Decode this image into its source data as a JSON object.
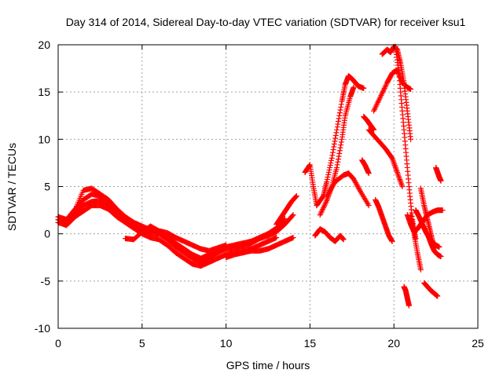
{
  "chart_data": {
    "type": "scatter",
    "title": "Day 314 of 2014, Sidereal Day-to-day VTEC variation (SDTVAR) for receiver ksu1",
    "xlabel": "GPS time / hours",
    "ylabel": "SDTVAR / TECUs",
    "xlim": [
      0,
      25
    ],
    "ylim": [
      -10,
      20
    ],
    "xticks": [
      0,
      5,
      10,
      15,
      20,
      25
    ],
    "yticks": [
      -10,
      -5,
      0,
      5,
      10,
      15,
      20
    ],
    "xtick_labels": [
      "0",
      "5",
      "10",
      "15",
      "20",
      "25"
    ],
    "ytick_labels": [
      "-10",
      "-5",
      "0",
      "5",
      "10",
      "15",
      "20"
    ],
    "grid": true,
    "marker": "+",
    "color": "#ff0000",
    "series": [
      {
        "name": "track-1",
        "x": [
          0.0,
          0.5,
          1.0,
          1.5,
          2.0,
          2.5,
          3.0,
          3.5,
          4.0,
          4.5,
          5.0,
          5.5,
          6.0,
          6.5,
          7.0,
          7.5,
          8.0,
          8.5,
          9.0,
          9.5,
          10.0,
          10.5,
          11.0,
          11.5,
          12.0,
          12.5,
          13.0,
          13.5,
          14.0
        ],
        "y": [
          1.5,
          1.2,
          2.0,
          3.0,
          3.4,
          3.5,
          3.0,
          2.2,
          1.5,
          1.0,
          0.5,
          0.0,
          0.0,
          -0.6,
          -1.4,
          -2.0,
          -2.6,
          -3.0,
          -2.6,
          -2.0,
          -1.6,
          -1.5,
          -1.3,
          -1.0,
          -0.5,
          -0.2,
          0.2,
          1.0,
          2.0
        ]
      },
      {
        "name": "track-2",
        "x": [
          0.0,
          0.5,
          1.0,
          1.5,
          2.0,
          2.5,
          3.0,
          3.5,
          4.0,
          4.5,
          5.0,
          5.5,
          6.0,
          6.5,
          7.0,
          7.5,
          8.0,
          8.5,
          9.0,
          9.5,
          10.0,
          10.5,
          11.0,
          11.5,
          12.0,
          12.5,
          13.0,
          13.5
        ],
        "y": [
          1.8,
          1.5,
          2.6,
          3.6,
          4.2,
          4.0,
          3.5,
          2.6,
          1.8,
          1.2,
          0.8,
          0.4,
          0.2,
          -0.2,
          -1.0,
          -1.6,
          -2.2,
          -2.6,
          -2.2,
          -1.8,
          -1.4,
          -1.2,
          -1.0,
          -0.8,
          -0.4,
          0.0,
          0.6,
          1.6
        ]
      },
      {
        "name": "track-3",
        "x": [
          0.0,
          0.5,
          1.0,
          1.5,
          2.0,
          2.5,
          3.0,
          3.5,
          4.0,
          4.5,
          5.0,
          5.5,
          6.0,
          6.5,
          7.0,
          7.5,
          8.0,
          8.5,
          9.0,
          9.5,
          10.0,
          10.5,
          11.0,
          11.5,
          12.0,
          12.5,
          13.0
        ],
        "y": [
          1.2,
          0.9,
          1.8,
          2.4,
          3.0,
          3.0,
          2.6,
          1.8,
          1.2,
          0.6,
          0.0,
          -0.4,
          -0.6,
          -1.2,
          -2.0,
          -2.6,
          -3.2,
          -3.4,
          -3.0,
          -2.6,
          -2.2,
          -2.0,
          -1.8,
          -1.6,
          -1.2,
          -0.8,
          -0.4
        ]
      },
      {
        "name": "track-4",
        "x": [
          1.0,
          1.5,
          2.0,
          2.5,
          3.0,
          3.5,
          4.0
        ],
        "y": [
          2.5,
          4.6,
          4.8,
          4.2,
          3.6,
          2.6,
          1.6
        ]
      },
      {
        "name": "track-5",
        "x": [
          4.0,
          4.5,
          5.0,
          5.5,
          6.0,
          6.5,
          7.0,
          7.5,
          8.0,
          8.5,
          9.0,
          9.5,
          10.0
        ],
        "y": [
          -0.5,
          -0.6,
          0.2,
          0.8,
          0.3,
          0.1,
          -0.4,
          -0.8,
          -1.2,
          -1.6,
          -1.8,
          -1.5,
          -1.2
        ]
      },
      {
        "name": "track-6",
        "x": [
          10.0,
          10.5,
          11.0,
          11.5,
          12.0,
          12.5,
          13.0,
          13.5,
          14.0
        ],
        "y": [
          -2.5,
          -2.2,
          -2.0,
          -1.8,
          -1.8,
          -1.6,
          -1.2,
          -0.8,
          -0.4
        ]
      },
      {
        "name": "track-7",
        "x": [
          13.0,
          13.3,
          13.6,
          13.9,
          14.2
        ],
        "y": [
          1.0,
          1.8,
          2.6,
          3.4,
          4.0
        ]
      },
      {
        "name": "track-8",
        "x": [
          15.4,
          15.8,
          16.0,
          16.3,
          16.6,
          16.9,
          17.1,
          17.3,
          17.5,
          17.7,
          17.9,
          18.2
        ],
        "y": [
          3.0,
          4.0,
          5.5,
          8.0,
          11.0,
          14.0,
          15.8,
          16.7,
          16.4,
          16.0,
          15.6,
          15.4
        ]
      },
      {
        "name": "track-9",
        "x": [
          15.6,
          16.0,
          16.3,
          16.6,
          16.9,
          17.1,
          17.4,
          17.6
        ],
        "y": [
          2.0,
          3.5,
          5.0,
          7.0,
          10.0,
          12.5,
          14.5,
          15.5
        ]
      },
      {
        "name": "track-10",
        "x": [
          16.0,
          16.5,
          17.0,
          17.3,
          17.6,
          18.0,
          18.5
        ],
        "y": [
          4.0,
          5.5,
          6.2,
          6.4,
          5.8,
          4.5,
          3.0
        ]
      },
      {
        "name": "track-11",
        "x": [
          15.3,
          15.6,
          15.9,
          16.2,
          16.5,
          16.8,
          17.0
        ],
        "y": [
          -0.2,
          0.5,
          0.2,
          -0.4,
          -0.8,
          -0.2,
          -0.6
        ]
      },
      {
        "name": "track-12",
        "x": [
          14.7,
          15.0,
          15.2,
          15.4
        ],
        "y": [
          6.5,
          7.3,
          5.0,
          3.0
        ]
      },
      {
        "name": "track-13",
        "x": [
          18.2,
          18.4,
          18.6,
          18.8
        ],
        "y": [
          12.4,
          12.0,
          11.5,
          11.0
        ]
      },
      {
        "name": "track-14",
        "x": [
          18.1,
          18.3,
          18.5
        ],
        "y": [
          7.8,
          7.2,
          6.4
        ]
      },
      {
        "name": "track-15",
        "x": [
          18.8,
          19.2,
          19.6,
          19.9,
          20.2,
          20.5,
          20.8,
          21.0
        ],
        "y": [
          13.0,
          14.5,
          16.0,
          17.0,
          17.3,
          16.0,
          15.5,
          15.3
        ]
      },
      {
        "name": "track-16",
        "x": [
          18.5,
          19.0,
          19.5,
          19.9,
          20.2,
          20.5
        ],
        "y": [
          11.0,
          10.0,
          9.0,
          8.0,
          6.5,
          5.0
        ]
      },
      {
        "name": "track-17",
        "x": [
          18.9,
          19.1,
          19.3,
          19.5,
          19.7,
          19.9
        ],
        "y": [
          3.6,
          2.8,
          1.8,
          0.8,
          -0.2,
          -0.8
        ]
      },
      {
        "name": "track-18",
        "x": [
          19.3,
          19.6,
          19.8,
          20.0,
          20.2,
          20.4,
          20.6,
          20.8,
          21.0
        ],
        "y": [
          19.0,
          19.5,
          19.2,
          19.8,
          19.5,
          18.0,
          16.0,
          13.0,
          10.0
        ]
      },
      {
        "name": "track-19",
        "x": [
          20.1,
          20.3,
          20.5,
          20.7,
          20.9,
          21.1,
          21.3
        ],
        "y": [
          19.8,
          17.0,
          13.0,
          9.0,
          5.0,
          1.5,
          -0.5
        ]
      },
      {
        "name": "track-20",
        "x": [
          20.8,
          21.0,
          21.2,
          21.4,
          21.6,
          21.8,
          22.0,
          22.3,
          22.6,
          22.9
        ],
        "y": [
          2.0,
          1.0,
          0.2,
          0.5,
          1.0,
          1.5,
          2.0,
          2.3,
          2.5,
          2.5
        ]
      },
      {
        "name": "track-21",
        "x": [
          21.3,
          21.5,
          21.7,
          21.9,
          22.1,
          22.3,
          22.5,
          22.7
        ],
        "y": [
          2.5,
          1.8,
          1.0,
          0.2,
          -0.4,
          -0.9,
          -1.2,
          -1.4
        ]
      },
      {
        "name": "track-22",
        "x": [
          22.0,
          22.2,
          22.4,
          22.6,
          22.8
        ],
        "y": [
          0.0,
          -1.0,
          -1.8,
          -2.2,
          -2.4
        ]
      },
      {
        "name": "track-23",
        "x": [
          21.8,
          22.0,
          22.2,
          22.4,
          22.6
        ],
        "y": [
          -5.2,
          -5.6,
          -6.0,
          -6.3,
          -6.6
        ]
      },
      {
        "name": "track-24",
        "x": [
          20.6,
          20.7,
          20.8,
          20.9
        ],
        "y": [
          -5.6,
          -6.0,
          -6.8,
          -7.6
        ]
      },
      {
        "name": "track-25",
        "x": [
          22.5,
          22.6,
          22.7,
          22.8
        ],
        "y": [
          7.0,
          6.5,
          6.0,
          5.6
        ]
      },
      {
        "name": "track-26",
        "x": [
          21.0,
          21.2,
          21.4,
          21.6
        ],
        "y": [
          2.0,
          0.0,
          -2.0,
          -3.8
        ]
      },
      {
        "name": "track-27",
        "x": [
          21.6,
          21.8,
          22.0,
          22.2,
          22.4
        ],
        "y": [
          4.8,
          3.0,
          1.5,
          0.0,
          -1.5
        ]
      }
    ]
  }
}
